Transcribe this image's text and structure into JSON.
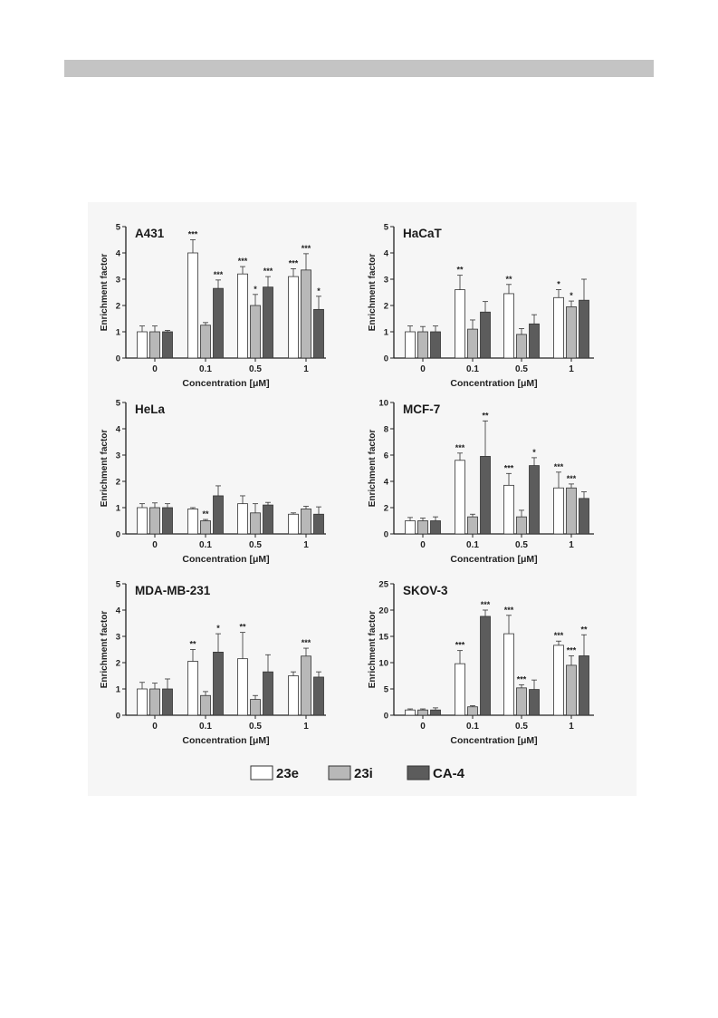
{
  "legend": [
    {
      "label": "23e",
      "color": "#ffffff"
    },
    {
      "label": "23i",
      "color": "#b8b8b8"
    },
    {
      "label": "CA-4",
      "color": "#5c5c5c"
    }
  ],
  "chart_data": [
    {
      "type": "bar",
      "title": "A431",
      "xlabel": "Concentration [μM]",
      "ylabel": "Enrichment factor",
      "categories": [
        "0",
        "0.1",
        "0.5",
        "1"
      ],
      "ylim": [
        0,
        5
      ],
      "yticks": [
        0,
        1,
        2,
        3,
        4,
        5
      ],
      "series": [
        {
          "name": "23e",
          "values": [
            1.0,
            4.0,
            3.2,
            3.1
          ],
          "errors": [
            0.22,
            0.5,
            0.28,
            0.3
          ],
          "sig": [
            "",
            "***",
            "***",
            "***"
          ]
        },
        {
          "name": "23i",
          "values": [
            1.0,
            1.25,
            2.0,
            3.35
          ],
          "errors": [
            0.22,
            0.1,
            0.42,
            0.62
          ],
          "sig": [
            "",
            "",
            "*",
            "***"
          ]
        },
        {
          "name": "CA-4",
          "values": [
            1.0,
            2.65,
            2.7,
            1.85
          ],
          "errors": [
            0.05,
            0.32,
            0.4,
            0.5
          ],
          "sig": [
            "",
            "***",
            "***",
            "*"
          ]
        }
      ]
    },
    {
      "type": "bar",
      "title": "HaCaT",
      "xlabel": "Concentration [μM]",
      "ylabel": "Enrichment factor",
      "categories": [
        "0",
        "0.1",
        "0.5",
        "1"
      ],
      "ylim": [
        0,
        5
      ],
      "yticks": [
        0,
        1,
        2,
        3,
        4,
        5
      ],
      "series": [
        {
          "name": "23e",
          "values": [
            1.0,
            2.6,
            2.45,
            2.3
          ],
          "errors": [
            0.22,
            0.55,
            0.35,
            0.3
          ],
          "sig": [
            "",
            "**",
            "**",
            "*"
          ]
        },
        {
          "name": "23i",
          "values": [
            1.0,
            1.1,
            0.9,
            1.95
          ],
          "errors": [
            0.2,
            0.35,
            0.22,
            0.22
          ],
          "sig": [
            "",
            "",
            "",
            "*"
          ]
        },
        {
          "name": "CA-4",
          "values": [
            1.0,
            1.75,
            1.3,
            2.2
          ],
          "errors": [
            0.22,
            0.4,
            0.35,
            0.8
          ],
          "sig": [
            "",
            "",
            "",
            ""
          ]
        }
      ]
    },
    {
      "type": "bar",
      "title": "HeLa",
      "xlabel": "Concentration [μM]",
      "ylabel": "Enrichment factor",
      "categories": [
        "0",
        "0.1",
        "0.5",
        "1"
      ],
      "ylim": [
        0,
        5
      ],
      "yticks": [
        0,
        1,
        2,
        3,
        4,
        5
      ],
      "series": [
        {
          "name": "23e",
          "values": [
            1.0,
            0.95,
            1.15,
            0.75
          ],
          "errors": [
            0.15,
            0.05,
            0.3,
            0.05
          ],
          "sig": [
            "",
            "",
            "",
            ""
          ]
        },
        {
          "name": "23i",
          "values": [
            1.0,
            0.5,
            0.8,
            0.95
          ],
          "errors": [
            0.18,
            0.05,
            0.35,
            0.1
          ],
          "sig": [
            "",
            "**",
            "",
            ""
          ]
        },
        {
          "name": "CA-4",
          "values": [
            1.0,
            1.45,
            1.1,
            0.75
          ],
          "errors": [
            0.15,
            0.38,
            0.1,
            0.28
          ],
          "sig": [
            "",
            "",
            "",
            ""
          ]
        }
      ]
    },
    {
      "type": "bar",
      "title": "MCF-7",
      "xlabel": "Concentration [μM]",
      "ylabel": "Enrichment factor",
      "categories": [
        "0",
        "0.1",
        "0.5",
        "1"
      ],
      "ylim": [
        0,
        10
      ],
      "yticks": [
        0,
        2,
        4,
        6,
        8,
        10
      ],
      "series": [
        {
          "name": "23e",
          "values": [
            1.0,
            5.6,
            3.7,
            3.5
          ],
          "errors": [
            0.25,
            0.55,
            0.9,
            1.2
          ],
          "sig": [
            "",
            "***",
            "***",
            "***"
          ]
        },
        {
          "name": "23i",
          "values": [
            1.0,
            1.3,
            1.3,
            3.5
          ],
          "errors": [
            0.2,
            0.2,
            0.5,
            0.3
          ],
          "sig": [
            "",
            "",
            "",
            "***"
          ]
        },
        {
          "name": "CA-4",
          "values": [
            1.0,
            5.9,
            5.2,
            2.7
          ],
          "errors": [
            0.3,
            2.7,
            0.6,
            0.5
          ],
          "sig": [
            "",
            "**",
            "*",
            ""
          ]
        }
      ]
    },
    {
      "type": "bar",
      "title": "MDA-MB-231",
      "xlabel": "Concentration [μM]",
      "ylabel": "Enrichment factor",
      "categories": [
        "0",
        "0.1",
        "0.5",
        "1"
      ],
      "ylim": [
        0,
        5
      ],
      "yticks": [
        0,
        1,
        2,
        3,
        4,
        5
      ],
      "series": [
        {
          "name": "23e",
          "values": [
            1.0,
            2.05,
            2.15,
            1.5
          ],
          "errors": [
            0.25,
            0.45,
            1.0,
            0.15
          ],
          "sig": [
            "",
            "**",
            "**",
            ""
          ]
        },
        {
          "name": "23i",
          "values": [
            1.0,
            0.75,
            0.6,
            2.25
          ],
          "errors": [
            0.22,
            0.15,
            0.15,
            0.3
          ],
          "sig": [
            "",
            "",
            "",
            "***"
          ]
        },
        {
          "name": "CA-4",
          "values": [
            1.0,
            2.4,
            1.65,
            1.45
          ],
          "errors": [
            0.38,
            0.7,
            0.65,
            0.2
          ],
          "sig": [
            "",
            "*",
            "",
            ""
          ]
        }
      ]
    },
    {
      "type": "bar",
      "title": "SKOV-3",
      "xlabel": "Concentration [μM]",
      "ylabel": "Enrichment factor",
      "categories": [
        "0",
        "0.1",
        "0.5",
        "1"
      ],
      "ylim": [
        0,
        25
      ],
      "yticks": [
        0,
        5,
        10,
        15,
        20,
        25
      ],
      "series": [
        {
          "name": "23e",
          "values": [
            1.0,
            9.8,
            15.5,
            13.3
          ],
          "errors": [
            0.2,
            2.5,
            3.5,
            0.8
          ],
          "sig": [
            "",
            "***",
            "***",
            "***"
          ]
        },
        {
          "name": "23i",
          "values": [
            1.0,
            1.6,
            5.2,
            9.5
          ],
          "errors": [
            0.2,
            0.2,
            0.6,
            1.8
          ],
          "sig": [
            "",
            "",
            "***",
            "***"
          ]
        },
        {
          "name": "CA-4",
          "values": [
            1.0,
            18.8,
            4.9,
            11.3
          ],
          "errors": [
            0.4,
            1.2,
            1.8,
            4.0
          ],
          "sig": [
            "",
            "***",
            "",
            "**"
          ]
        }
      ]
    }
  ]
}
